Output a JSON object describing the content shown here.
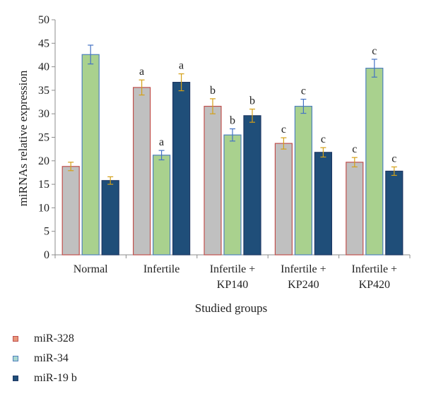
{
  "chart_data": {
    "type": "bar",
    "categories": [
      [
        "Normal"
      ],
      [
        "Infertile"
      ],
      [
        "Infertile +",
        "KP140"
      ],
      [
        "Infertile +",
        "KP240"
      ],
      [
        "Infertile +",
        "KP420"
      ]
    ],
    "xlabel": "Studied groups",
    "ylabel": "miRNAs relative expression",
    "ylim": [
      0,
      50
    ],
    "yticks": [
      0,
      5,
      10,
      15,
      20,
      25,
      30,
      35,
      40,
      45,
      50
    ],
    "grid": false,
    "legend_position": "bottom-left",
    "series": [
      {
        "name": "miR-328",
        "fill": "#c0c0c0",
        "edge": "#c0504d",
        "swatch_fill": "#e9967a",
        "values": [
          18.8,
          35.6,
          31.6,
          23.7,
          19.7
        ],
        "errors": [
          0.9,
          1.6,
          1.6,
          1.2,
          1.0
        ],
        "labels": [
          "",
          "a",
          "b",
          "c",
          "c"
        ]
      },
      {
        "name": "miR-34",
        "fill": "#a9d18e",
        "edge": "#4f81bd",
        "swatch_fill": "#a9d8d0",
        "values": [
          42.6,
          21.2,
          25.5,
          31.6,
          39.7
        ],
        "errors": [
          2.0,
          1.0,
          1.3,
          1.5,
          1.9
        ],
        "labels": [
          "",
          "a",
          "b",
          "c",
          "c"
        ]
      },
      {
        "name": "miR-19 b",
        "fill": "#1f4e79",
        "edge": "#1f3864",
        "swatch_fill": "#1f4e79",
        "values": [
          15.8,
          36.7,
          29.6,
          21.8,
          17.8
        ],
        "errors": [
          0.8,
          1.8,
          1.4,
          1.0,
          0.9
        ],
        "labels": [
          "",
          "a",
          "b",
          "c",
          "c"
        ]
      }
    ]
  }
}
